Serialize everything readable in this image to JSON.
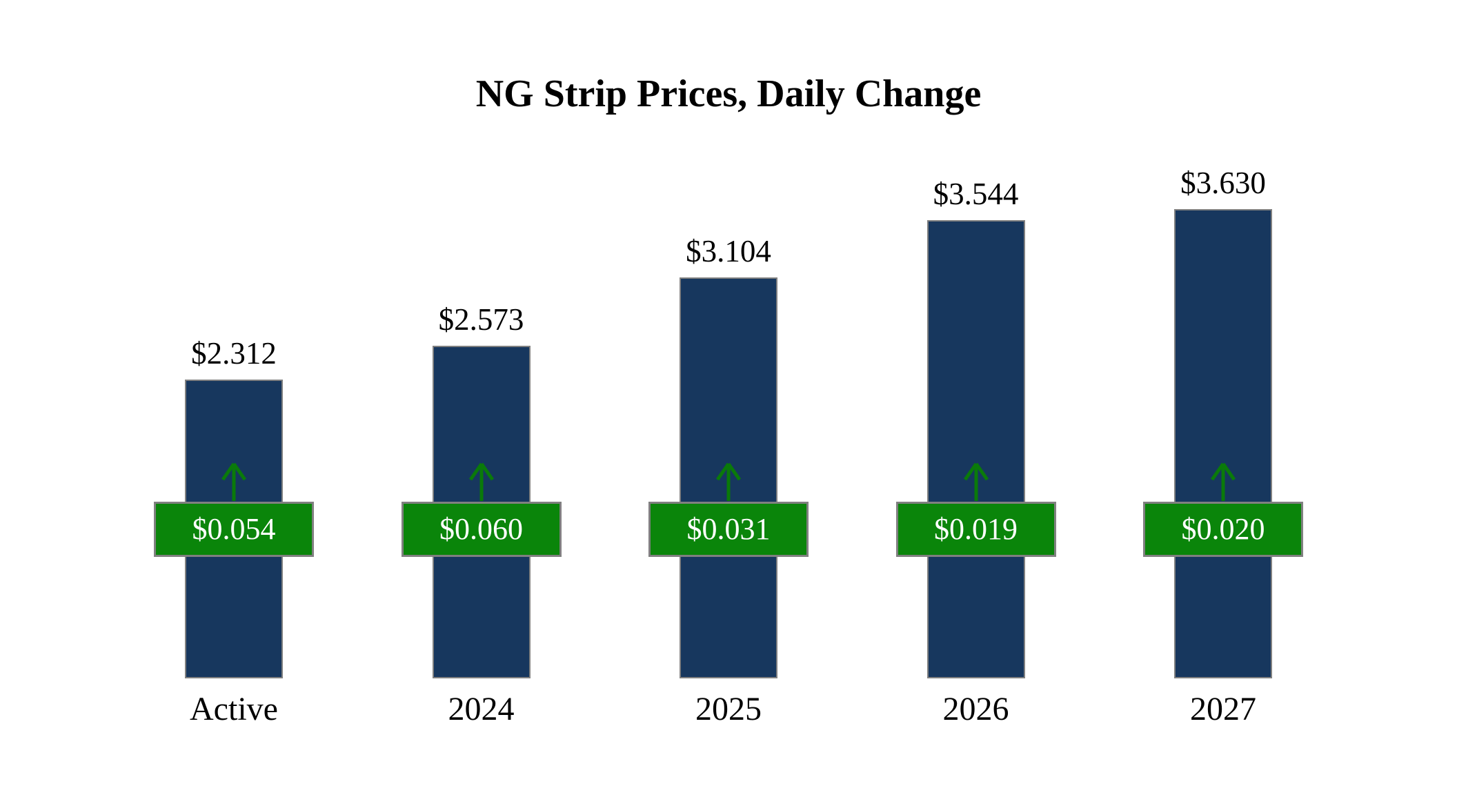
{
  "title": "NG Strip Prices, Daily Change",
  "chart_data": {
    "type": "bar",
    "title": "NG Strip Prices, Daily Change",
    "categories": [
      "Active",
      "2024",
      "2025",
      "2026",
      "2027"
    ],
    "series": [
      {
        "name": "Strip Price",
        "values": [
          2.312,
          2.573,
          3.104,
          3.544,
          3.63
        ]
      },
      {
        "name": "Daily Change",
        "values": [
          0.054,
          0.06,
          0.031,
          0.019,
          0.02
        ]
      }
    ],
    "price_labels": [
      "$2.312",
      "$2.573",
      "$3.104",
      "$3.544",
      "$3.630"
    ],
    "change_labels": [
      "$0.054",
      "$0.060",
      "$0.031",
      "$0.019",
      "$0.020"
    ],
    "change_direction": "up",
    "ylim": [
      0,
      4
    ],
    "grid": false,
    "legend": "none",
    "colors": {
      "bar": "#17375E",
      "badge": "#0A850A",
      "arrow": "#0A7A0A",
      "border": "#808080",
      "badge_text": "#ffffff",
      "text": "#000000"
    }
  }
}
